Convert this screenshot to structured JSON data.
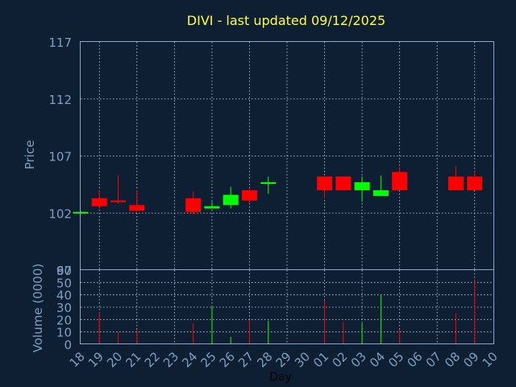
{
  "chart_data": {
    "type": "candlestick",
    "title": "DIVI - last updated 09/12/2025",
    "ylabel": "Price",
    "volume_label": "Volume (0000)",
    "xlabel": "Day",
    "price_ylim": [
      97,
      117
    ],
    "price_yticks": [
      "117",
      "112",
      "107",
      "102",
      "97"
    ],
    "volume_ylim": [
      0,
      60
    ],
    "volume_yticks": [
      "60",
      "50",
      "40",
      "30",
      "20",
      "10",
      "0"
    ],
    "x_ticks": [
      "18",
      "19",
      "20",
      "21",
      "22",
      "23",
      "24",
      "25",
      "26",
      "27",
      "28",
      "29",
      "30",
      "01",
      "02",
      "03",
      "04",
      "05",
      "06",
      "07",
      "08",
      "09",
      "10"
    ],
    "colors": {
      "up": "#00ff00",
      "down": "#ff0000",
      "title": "#ffff33",
      "axis_text": "#7f9fbf",
      "background": "#0f1f33"
    },
    "candles": [
      {
        "day": "18",
        "open": 102.1,
        "close": 102.1,
        "high": 102.2,
        "low": 102.0,
        "volume": 0.5
      },
      {
        "day": "19",
        "open": 103.3,
        "close": 102.6,
        "high": 104.0,
        "low": 102.4,
        "volume": 26
      },
      {
        "day": "20",
        "open": 103.1,
        "close": 103.0,
        "high": 105.3,
        "low": 102.8,
        "volume": 10
      },
      {
        "day": "21",
        "open": 102.7,
        "close": 102.2,
        "high": 104.0,
        "low": 102.1,
        "volume": 12
      },
      {
        "day": "24",
        "open": 103.3,
        "close": 102.1,
        "high": 103.9,
        "low": 101.9,
        "volume": 17
      },
      {
        "day": "25",
        "open": 102.4,
        "close": 102.6,
        "high": 103.0,
        "low": 102.4,
        "volume": 31
      },
      {
        "day": "26",
        "open": 102.7,
        "close": 103.6,
        "high": 104.3,
        "low": 102.4,
        "volume": 6
      },
      {
        "day": "27",
        "open": 104.0,
        "close": 103.1,
        "high": 104.1,
        "low": 102.9,
        "volume": 20
      },
      {
        "day": "28",
        "open": 104.6,
        "close": 104.7,
        "high": 105.2,
        "low": 103.7,
        "volume": 19
      },
      {
        "day": "01",
        "open": 105.2,
        "close": 104.0,
        "high": 105.2,
        "low": 103.3,
        "volume": 35
      },
      {
        "day": "02",
        "open": 105.2,
        "close": 104.0,
        "high": 105.2,
        "low": 104.0,
        "volume": 18
      },
      {
        "day": "03",
        "open": 104.0,
        "close": 104.7,
        "high": 105.2,
        "low": 103.0,
        "volume": 17
      },
      {
        "day": "04",
        "open": 103.5,
        "close": 104.0,
        "high": 105.3,
        "low": 103.5,
        "volume": 40
      },
      {
        "day": "05",
        "open": 105.6,
        "close": 104.0,
        "high": 106.0,
        "low": 104.0,
        "volume": 12
      },
      {
        "day": "08",
        "open": 105.2,
        "close": 104.0,
        "high": 106.1,
        "low": 104.0,
        "volume": 25
      },
      {
        "day": "09",
        "open": 105.2,
        "close": 104.0,
        "high": 105.7,
        "low": 104.0,
        "volume": 52
      }
    ]
  }
}
